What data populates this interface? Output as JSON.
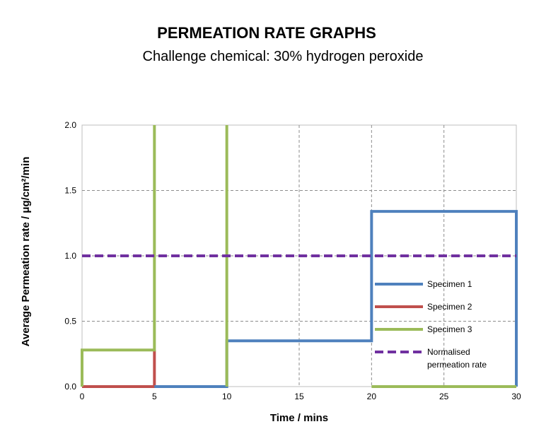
{
  "chart_data": {
    "type": "line",
    "title": "PERMEATION RATE GRAPHS",
    "subtitle": "Challenge chemical: 30% hydrogen peroxide",
    "xlabel": "Time / mins",
    "ylabel": "Average Permeation rate / μg/cm²/min",
    "xlim": [
      0,
      30
    ],
    "ylim": [
      0,
      2.0
    ],
    "x_ticks": [
      "0",
      "5",
      "10",
      "15",
      "20",
      "25",
      "30"
    ],
    "y_ticks": [
      "0.0",
      "0.5",
      "1.0",
      "1.5",
      "2.0"
    ],
    "grid": true,
    "legend_position": "right",
    "series": [
      {
        "name": "Specimen 1",
        "color": "#4f81bd",
        "style": "solid",
        "x": [
          5,
          10,
          10,
          20,
          20,
          30,
          30
        ],
        "y": [
          0,
          0,
          0.35,
          0.35,
          1.34,
          1.34,
          0
        ]
      },
      {
        "name": "Specimen 2",
        "color": "#c0504d",
        "style": "solid",
        "x": [
          0,
          5,
          5
        ],
        "y": [
          0,
          0,
          0.28
        ]
      },
      {
        "name": "Specimen 3",
        "color": "#9bbb59",
        "style": "solid",
        "x": [
          0,
          0,
          5,
          5
        ],
        "y": [
          0,
          0.28,
          0.28,
          2.0
        ],
        "extra_segments": [
          {
            "x": [
              10,
              10
            ],
            "y": [
              0,
              2.0
            ]
          },
          {
            "x": [
              20,
              30
            ],
            "y": [
              0,
              0
            ]
          }
        ]
      },
      {
        "name": "Normalised permeation rate",
        "color": "#7030a0",
        "style": "dashed",
        "x": [
          0,
          30
        ],
        "y": [
          1.0,
          1.0
        ]
      }
    ],
    "legend_labels": [
      "Specimen 1",
      "Specimen 2",
      "Specimen 3",
      "Normalised",
      "permeation rate"
    ]
  }
}
